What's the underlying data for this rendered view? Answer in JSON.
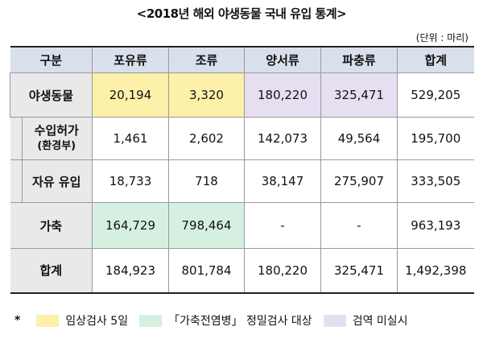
{
  "title": "<2018년 해외 야생동물 국내 유입 통계>",
  "unit": "(단위 : 마리)",
  "headers": [
    "구분",
    "포유류",
    "조류",
    "양서류",
    "파충류",
    "합계"
  ],
  "rows": {
    "wild": {
      "label": "야생동물",
      "values": [
        "20,194",
        "3,320",
        "180,220",
        "325,471",
        "529,205"
      ]
    },
    "import": {
      "label": "수입허가",
      "note": "(환경부)",
      "values": [
        "1,461",
        "2,602",
        "142,073",
        "49,564",
        "195,700"
      ]
    },
    "free": {
      "label": "자유 유입",
      "values": [
        "18,733",
        "718",
        "38,147",
        "275,907",
        "333,505"
      ]
    },
    "livestock": {
      "label": "가축",
      "values": [
        "164,729",
        "798,464",
        "-",
        "-",
        "963,193"
      ]
    },
    "total": {
      "label": "합계",
      "values": [
        "184,923",
        "801,784",
        "180,220",
        "325,471",
        "1,492,398"
      ]
    }
  },
  "legend": {
    "marker": "*",
    "items": [
      {
        "label": "임상검사 5일",
        "color": "#fdf0a8"
      },
      {
        "label": "「가축전염병」 정밀검사 대상",
        "color": "#d5f0e1"
      },
      {
        "label": "검역 미실시",
        "color": "#e6dff1"
      }
    ]
  }
}
